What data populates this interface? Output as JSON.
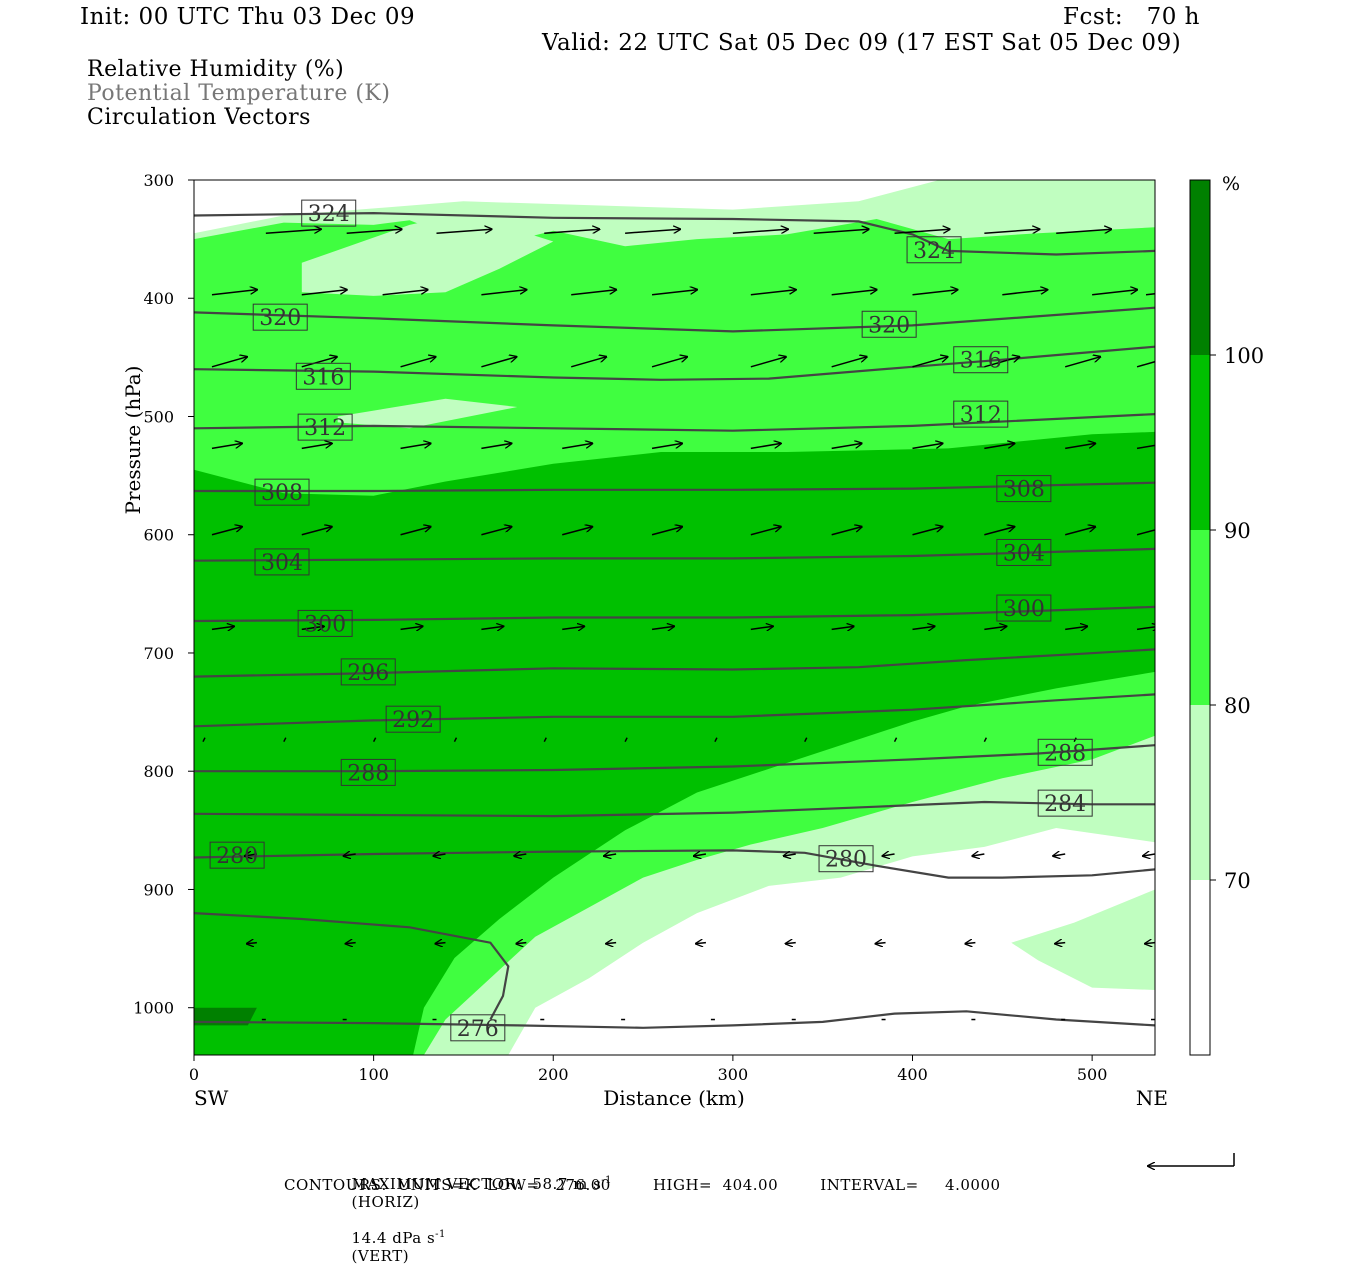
{
  "header": {
    "init": "Init: 00 UTC Thu 03 Dec 09",
    "fcst": "Fcst:   70 h",
    "valid": "Valid: 22 UTC Sat 05 Dec 09 (17 EST Sat 05 Dec 09)"
  },
  "legend": {
    "rh": "Relative Humidity (%)",
    "theta": "Potential Temperature (K)",
    "vectors": "Circulation Vectors"
  },
  "colors": {
    "rh_70_80": "#c0fec0",
    "rh_80_90": "#40fe40",
    "rh_90_100": "#00c000",
    "rh_100": "#008000",
    "contour": "#444444"
  },
  "chart_data": {
    "type": "cross-section",
    "xlabel": "Distance (km)",
    "ylabel": "Pressure (hPa)",
    "xlim": [
      0,
      535
    ],
    "ylim": [
      1040,
      300
    ],
    "x_ticks": [
      0,
      100,
      200,
      300,
      400,
      500
    ],
    "y_ticks": [
      300,
      400,
      500,
      600,
      700,
      800,
      900,
      1000
    ],
    "x_end_labels": {
      "left": "SW",
      "right": "NE"
    },
    "colorbar": {
      "unit": "%",
      "levels": [
        70,
        80,
        90,
        100
      ],
      "colors": [
        "#ffffff",
        "#c0fec0",
        "#40fe40",
        "#00c000",
        "#008000"
      ]
    },
    "rh_fill": [
      {
        "level": 70,
        "polygon": [
          [
            0,
            345
          ],
          [
            50,
            330
          ],
          [
            150,
            318
          ],
          [
            300,
            325
          ],
          [
            370,
            318
          ],
          [
            420,
            298
          ],
          [
            535,
            292
          ],
          [
            535,
            860
          ],
          [
            480,
            848
          ],
          [
            440,
            864
          ],
          [
            400,
            872
          ],
          [
            360,
            890
          ],
          [
            320,
            897
          ],
          [
            280,
            920
          ],
          [
            250,
            945
          ],
          [
            220,
            975
          ],
          [
            190,
            1000
          ],
          [
            175,
            1040
          ],
          [
            0,
            1040
          ]
        ]
      },
      {
        "level": 80,
        "polygon": [
          [
            0,
            350
          ],
          [
            50,
            336
          ],
          [
            100,
            338
          ],
          [
            120,
            334
          ],
          [
            160,
            358
          ],
          [
            200,
            343
          ],
          [
            240,
            356
          ],
          [
            280,
            350
          ],
          [
            330,
            346
          ],
          [
            380,
            333
          ],
          [
            420,
            350
          ],
          [
            470,
            345
          ],
          [
            535,
            340
          ],
          [
            535,
            770
          ],
          [
            500,
            790
          ],
          [
            450,
            806
          ],
          [
            400,
            826
          ],
          [
            350,
            848
          ],
          [
            310,
            862
          ],
          [
            280,
            875
          ],
          [
            250,
            890
          ],
          [
            220,
            915
          ],
          [
            190,
            940
          ],
          [
            165,
            975
          ],
          [
            140,
            1010
          ],
          [
            128,
            1040
          ],
          [
            0,
            1040
          ]
        ]
      },
      {
        "level": 90,
        "polygon": [
          [
            0,
            545
          ],
          [
            50,
            565
          ],
          [
            100,
            567
          ],
          [
            140,
            555
          ],
          [
            200,
            540
          ],
          [
            260,
            530
          ],
          [
            330,
            530
          ],
          [
            420,
            527
          ],
          [
            500,
            515
          ],
          [
            535,
            513
          ],
          [
            535,
            716
          ],
          [
            480,
            730
          ],
          [
            430,
            745
          ],
          [
            400,
            758
          ],
          [
            360,
            778
          ],
          [
            320,
            798
          ],
          [
            280,
            818
          ],
          [
            240,
            850
          ],
          [
            200,
            890
          ],
          [
            170,
            925
          ],
          [
            145,
            958
          ],
          [
            128,
            1000
          ],
          [
            122,
            1040
          ],
          [
            0,
            1040
          ]
        ]
      },
      {
        "level": 100,
        "polygon": [
          [
            0,
            1000
          ],
          [
            35,
            1000
          ],
          [
            30,
            1015
          ],
          [
            0,
            1015
          ]
        ]
      }
    ],
    "rh_fill_gaps": [
      {
        "level": 70,
        "polygon": [
          [
            60,
            370
          ],
          [
            120,
            338
          ],
          [
            150,
            328
          ],
          [
            200,
            352
          ],
          [
            170,
            375
          ],
          [
            140,
            395
          ],
          [
            100,
            398
          ],
          [
            60,
            395
          ]
        ]
      },
      {
        "level": 70,
        "polygon": [
          [
            80,
            500
          ],
          [
            140,
            485
          ],
          [
            180,
            492
          ],
          [
            120,
            510
          ],
          [
            80,
            505
          ]
        ]
      },
      {
        "level": 70,
        "polygon": [
          [
            535,
            900
          ],
          [
            535,
            985
          ],
          [
            500,
            983
          ],
          [
            470,
            960
          ],
          [
            455,
            945
          ],
          [
            490,
            928
          ]
        ]
      }
    ],
    "theta_contours": [
      {
        "value": 324,
        "points": [
          [
            0,
            330
          ],
          [
            100,
            328
          ],
          [
            200,
            332
          ],
          [
            300,
            333
          ],
          [
            370,
            335
          ],
          [
            400,
            346
          ],
          [
            420,
            360
          ],
          [
            480,
            363
          ],
          [
            535,
            360
          ]
        ],
        "labels": [
          [
            75,
            328
          ],
          [
            412,
            359
          ]
        ]
      },
      {
        "level_note": "",
        "value": 320,
        "points": [
          [
            0,
            412
          ],
          [
            100,
            417
          ],
          [
            200,
            423
          ],
          [
            300,
            428
          ],
          [
            400,
            423
          ],
          [
            535,
            408
          ]
        ],
        "labels": [
          [
            48,
            416
          ],
          [
            387,
            422
          ]
        ]
      },
      {
        "value": 316,
        "points": [
          [
            0,
            460
          ],
          [
            100,
            462
          ],
          [
            200,
            467
          ],
          [
            260,
            469
          ],
          [
            320,
            468
          ],
          [
            400,
            458
          ],
          [
            450,
            452
          ],
          [
            535,
            441
          ]
        ],
        "labels": [
          [
            72,
            466
          ],
          [
            438,
            452
          ]
        ]
      },
      {
        "value": 312,
        "points": [
          [
            0,
            510
          ],
          [
            100,
            508
          ],
          [
            200,
            510
          ],
          [
            300,
            512
          ],
          [
            400,
            508
          ],
          [
            535,
            498
          ]
        ],
        "labels": [
          [
            73,
            509
          ],
          [
            438,
            498
          ]
        ]
      },
      {
        "value": 308,
        "points": [
          [
            0,
            563
          ],
          [
            100,
            563
          ],
          [
            200,
            562
          ],
          [
            300,
            562
          ],
          [
            400,
            561
          ],
          [
            535,
            556
          ]
        ],
        "labels": [
          [
            49,
            564
          ],
          [
            462,
            561
          ]
        ]
      },
      {
        "value": 304,
        "points": [
          [
            0,
            622
          ],
          [
            100,
            621
          ],
          [
            200,
            620
          ],
          [
            300,
            620
          ],
          [
            400,
            618
          ],
          [
            535,
            612
          ]
        ],
        "labels": [
          [
            49,
            623
          ],
          [
            462,
            615
          ]
        ]
      },
      {
        "value": 300,
        "points": [
          [
            0,
            673
          ],
          [
            100,
            672
          ],
          [
            200,
            670
          ],
          [
            300,
            670
          ],
          [
            400,
            668
          ],
          [
            535,
            661
          ]
        ],
        "labels": [
          [
            73,
            675
          ],
          [
            462,
            662
          ]
        ]
      },
      {
        "value": 296,
        "points": [
          [
            0,
            720
          ],
          [
            100,
            717
          ],
          [
            200,
            713
          ],
          [
            300,
            714
          ],
          [
            370,
            712
          ],
          [
            430,
            706
          ],
          [
            490,
            701
          ],
          [
            535,
            697
          ]
        ],
        "labels": [
          [
            97,
            716
          ]
        ]
      },
      {
        "value": 292,
        "points": [
          [
            0,
            762
          ],
          [
            100,
            757
          ],
          [
            200,
            754
          ],
          [
            300,
            754
          ],
          [
            400,
            748
          ],
          [
            480,
            740
          ],
          [
            535,
            735
          ]
        ],
        "labels": [
          [
            122,
            756
          ]
        ]
      },
      {
        "value": 288,
        "points": [
          [
            0,
            800
          ],
          [
            100,
            800
          ],
          [
            200,
            799
          ],
          [
            300,
            796
          ],
          [
            400,
            790
          ],
          [
            470,
            785
          ],
          [
            535,
            778
          ]
        ],
        "labels": [
          [
            97,
            801
          ],
          [
            485,
            784
          ]
        ]
      },
      {
        "value": 284,
        "points": [
          [
            0,
            836
          ],
          [
            100,
            837
          ],
          [
            200,
            838
          ],
          [
            300,
            835
          ],
          [
            380,
            830
          ],
          [
            440,
            826
          ],
          [
            500,
            828
          ],
          [
            535,
            828
          ]
        ],
        "labels": [
          [
            485,
            827
          ]
        ]
      },
      {
        "value": 280,
        "points": [
          [
            0,
            873
          ],
          [
            100,
            870
          ],
          [
            200,
            868
          ],
          [
            300,
            867
          ],
          [
            340,
            869
          ],
          [
            380,
            880
          ],
          [
            420,
            890
          ],
          [
            450,
            890
          ],
          [
            500,
            888
          ],
          [
            535,
            883
          ]
        ],
        "labels": [
          [
            24,
            871
          ],
          [
            363,
            874
          ]
        ]
      },
      {
        "value": 276,
        "points": [
          [
            0,
            1012
          ],
          [
            100,
            1013
          ],
          [
            180,
            1015
          ],
          [
            250,
            1017
          ],
          [
            300,
            1015
          ],
          [
            350,
            1012
          ],
          [
            390,
            1005
          ],
          [
            430,
            1003
          ],
          [
            480,
            1010
          ],
          [
            535,
            1015
          ]
        ],
        "labels": [
          [
            158,
            1017
          ]
        ]
      },
      {
        "value": 276,
        "points": [
          [
            0,
            920
          ],
          [
            60,
            925
          ],
          [
            120,
            932
          ],
          [
            165,
            945
          ],
          [
            175,
            965
          ],
          [
            172,
            990
          ],
          [
            165,
            1010
          ]
        ],
        "labels": []
      }
    ],
    "vector_rows": [
      {
        "p": 345,
        "xs": [
          40,
          85,
          135,
          195,
          240,
          300,
          345,
          390,
          440,
          480,
          535
        ],
        "dx": 55,
        "dy": -4
      },
      {
        "p": 397,
        "xs": [
          10,
          60,
          105,
          160,
          210,
          255,
          310,
          355,
          400,
          450,
          500,
          530
        ],
        "dx": 45,
        "dy": -5
      },
      {
        "p": 458,
        "xs": [
          10,
          60,
          115,
          160,
          210,
          255,
          310,
          355,
          400,
          440,
          485,
          525
        ],
        "dx": 35,
        "dy": -10
      },
      {
        "p": 527,
        "xs": [
          10,
          60,
          115,
          160,
          205,
          255,
          310,
          355,
          400,
          440,
          485,
          525
        ],
        "dx": 30,
        "dy": -5
      },
      {
        "p": 600,
        "xs": [
          10,
          60,
          115,
          160,
          205,
          255,
          310,
          355,
          400,
          440,
          485,
          525
        ],
        "dx": 30,
        "dy": -8
      },
      {
        "p": 680,
        "xs": [
          10,
          60,
          115,
          160,
          205,
          255,
          310,
          355,
          400,
          440,
          485,
          525
        ],
        "dx": 22,
        "dy": -3
      },
      {
        "p": 775,
        "xs": [
          5,
          50,
          100,
          145,
          195,
          240,
          290,
          340,
          390,
          440,
          490,
          535
        ],
        "dx": 2,
        "dy": -4
      },
      {
        "p": 870,
        "xs": [
          35,
          90,
          140,
          185,
          235,
          285,
          335,
          390,
          440,
          485,
          535
        ],
        "dx": -12,
        "dy": 2
      },
      {
        "p": 945,
        "xs": [
          35,
          90,
          140,
          185,
          235,
          285,
          335,
          385,
          435,
          485,
          535
        ],
        "dx": -10,
        "dy": 1
      },
      {
        "p": 1010,
        "xs": [
          40,
          85,
          135,
          195,
          240,
          290,
          335,
          385,
          435,
          485,
          535
        ],
        "dx": -4,
        "dy": 0
      }
    ],
    "footer": {
      "line1a": "MAXIMUM VECTOR:  58.7 m s",
      "line1b": "(HORIZ)",
      "line1c": "14.4 dPa s",
      "line1d": "(VERT)",
      "sup": "-1",
      "line2": "CONTOURS:  UNITS=K  LOW=   276.00        HIGH=  404.00        INTERVAL=     4.0000"
    }
  }
}
